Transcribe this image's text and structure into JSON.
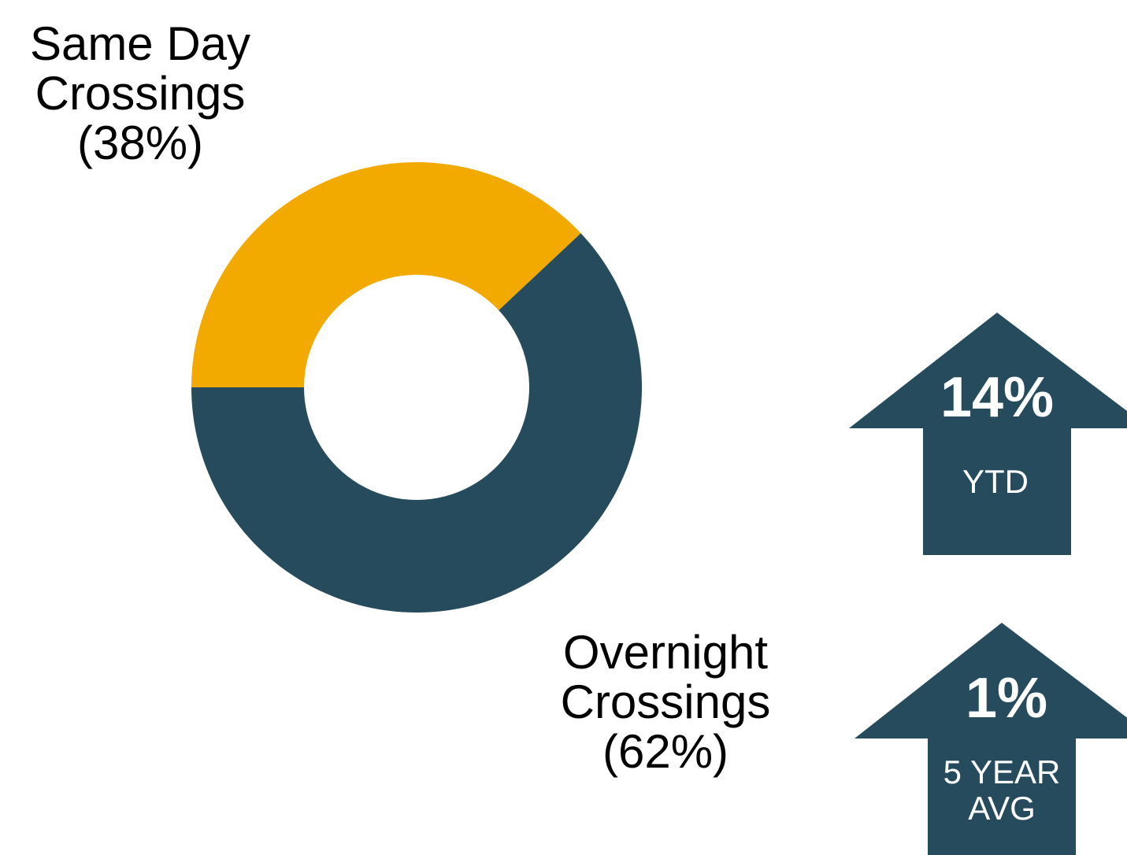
{
  "chart_data": {
    "type": "donut",
    "categories": [
      "Same Day Crossings",
      "Overnight Crossings"
    ],
    "values": [
      38,
      62
    ],
    "value_labels": [
      "(38%)",
      "(62%)"
    ],
    "colors": [
      "#f2a900",
      "#264b5c"
    ]
  },
  "callouts": [
    {
      "value": "14%",
      "label": "YTD"
    },
    {
      "value": "1%",
      "label": "5 YEAR AVG"
    }
  ]
}
